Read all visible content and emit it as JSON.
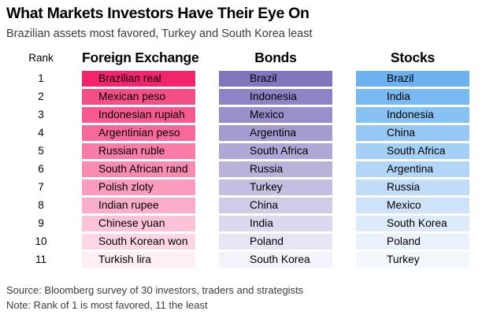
{
  "title": "What Markets Investors Have Their Eye On",
  "subtitle": "Brazilian assets most favored, Turkey and South Korea least",
  "source": "Source: Bloomberg survey of 30 investors, traders and strategists",
  "note": "Note: Rank of 1 is most favored, 11 the least",
  "table": {
    "rank_header": "Rank",
    "ranks": [
      "1",
      "2",
      "3",
      "4",
      "5",
      "6",
      "7",
      "8",
      "9",
      "10",
      "11"
    ],
    "columns": [
      {
        "id": "fx",
        "label": "Foreign Exchange",
        "accent_color": "#F1246C",
        "items": [
          {
            "label": "Brazilian real",
            "color": "#F1246C"
          },
          {
            "label": "Mexican peso",
            "color": "#F64E86"
          },
          {
            "label": "Indonesian rupiah",
            "color": "#F75A90"
          },
          {
            "label": "Argentinian peso",
            "color": "#F8699B"
          },
          {
            "label": "Russian ruble",
            "color": "#F97BA8"
          },
          {
            "label": "South African rand",
            "color": "#F98BB3"
          },
          {
            "label": "Polish zloty",
            "color": "#FA9BBF"
          },
          {
            "label": "Indian rupee",
            "color": "#FBAECB"
          },
          {
            "label": "Chinese yuan",
            "color": "#FCC2D8"
          },
          {
            "label": "South Korean won",
            "color": "#FDD7E5"
          },
          {
            "label": "Turkish lira",
            "color": "#FEEFF5"
          }
        ]
      },
      {
        "id": "bonds",
        "label": "Bonds",
        "accent_color": "#8175BD",
        "items": [
          {
            "label": "Brazil",
            "color": "#8175BD"
          },
          {
            "label": "Indonesia",
            "color": "#8D83C5"
          },
          {
            "label": "Mexico",
            "color": "#9A8FCA"
          },
          {
            "label": "Argentina",
            "color": "#A59BD0"
          },
          {
            "label": "South Africa",
            "color": "#B0A7D6"
          },
          {
            "label": "Russia",
            "color": "#BBB2DB"
          },
          {
            "label": "Turkey",
            "color": "#C6BEE1"
          },
          {
            "label": "China",
            "color": "#D2CBE7"
          },
          {
            "label": "India",
            "color": "#DDD8ED"
          },
          {
            "label": "Poland",
            "color": "#E9E4F3"
          },
          {
            "label": "South Korea",
            "color": "#F4F2FA"
          }
        ]
      },
      {
        "id": "stocks",
        "label": "Stocks",
        "accent_color": "#6CB2F1",
        "items": [
          {
            "label": "Brazil",
            "color": "#6CB2F1"
          },
          {
            "label": "India",
            "color": "#7ABAF3"
          },
          {
            "label": "Indonesia",
            "color": "#88C1F4"
          },
          {
            "label": "China",
            "color": "#96C8F5"
          },
          {
            "label": "South Africa",
            "color": "#A4CFF6"
          },
          {
            "label": "Argentina",
            "color": "#B2D6F7"
          },
          {
            "label": "Russia",
            "color": "#C0DCF8"
          },
          {
            "label": "Mexico",
            "color": "#CEE3F9"
          },
          {
            "label": "South Korea",
            "color": "#DCEAFA"
          },
          {
            "label": "Poland",
            "color": "#EAF1FC"
          },
          {
            "label": "Turkey",
            "color": "#F3F8FD"
          }
        ]
      }
    ]
  },
  "chart_data": {
    "type": "table",
    "title": "What Markets Investors Have Their Eye On",
    "subtitle": "Brazilian assets most favored, Turkey and South Korea least",
    "rank_range": [
      1,
      11
    ],
    "categories": [
      "Foreign Exchange",
      "Bonds",
      "Stocks"
    ],
    "rankings": {
      "foreign_exchange": [
        "Brazilian real",
        "Mexican peso",
        "Indonesian rupiah",
        "Argentinian peso",
        "Russian ruble",
        "South African rand",
        "Polish zloty",
        "Indian rupee",
        "Chinese yuan",
        "South Korean won",
        "Turkish lira"
      ],
      "bonds": [
        "Brazil",
        "Indonesia",
        "Mexico",
        "Argentina",
        "South Africa",
        "Russia",
        "Turkey",
        "China",
        "India",
        "Poland",
        "South Korea"
      ],
      "stocks": [
        "Brazil",
        "India",
        "Indonesia",
        "China",
        "South Africa",
        "Argentina",
        "Russia",
        "Mexico",
        "South Korea",
        "Poland",
        "Turkey"
      ]
    },
    "legend_position": "none",
    "grid": false,
    "note": "Rank of 1 is most favored, 11 the least",
    "source": "Bloomberg survey of 30 investors, traders and strategists"
  }
}
